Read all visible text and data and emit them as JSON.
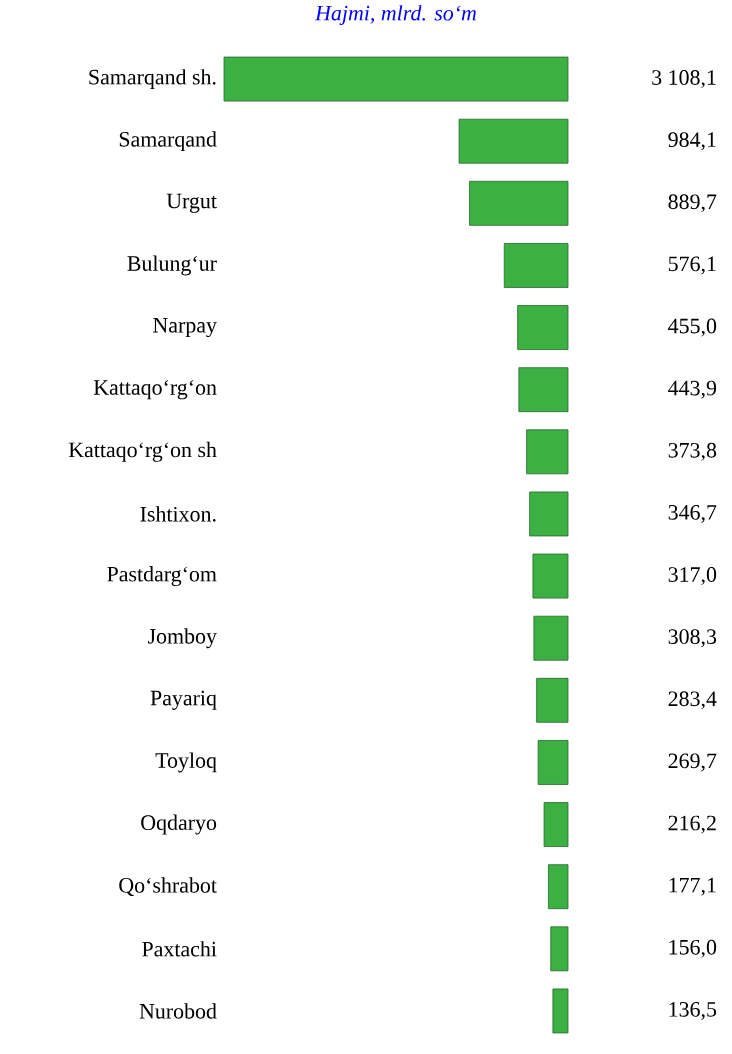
{
  "chart_data": {
    "type": "bar",
    "orientation": "horizontal",
    "title": "Hajmi, mlrd. so‘m",
    "categories": [
      "Samarqand sh.",
      "Samarqand",
      "Urgut",
      "Bulung‘ur",
      "Narpay",
      "Kattaqo‘rg‘on",
      "Kattaqo‘rg‘on sh",
      "Ishtixon.",
      "Pastdarg‘om",
      "Jomboy",
      "Payariq",
      "Toyloq",
      "Oqdaryo",
      "Qo‘shrabot",
      "Paxtachi",
      "Nurobod"
    ],
    "values": [
      3108.1,
      984.1,
      889.7,
      576.1,
      455.0,
      443.9,
      373.8,
      346.7,
      317.0,
      308.3,
      283.4,
      269.7,
      216.2,
      177.1,
      156.0,
      136.5
    ],
    "value_labels": [
      "3 108,1",
      "984,1",
      "889,7",
      "576,1",
      "455,0",
      "443,9",
      "373,8",
      "346,7",
      "317,0",
      "308,3",
      "283,4",
      "269,7",
      "216,2",
      "177,1",
      "156,0",
      "136,5"
    ],
    "color": "#3cb043"
  }
}
